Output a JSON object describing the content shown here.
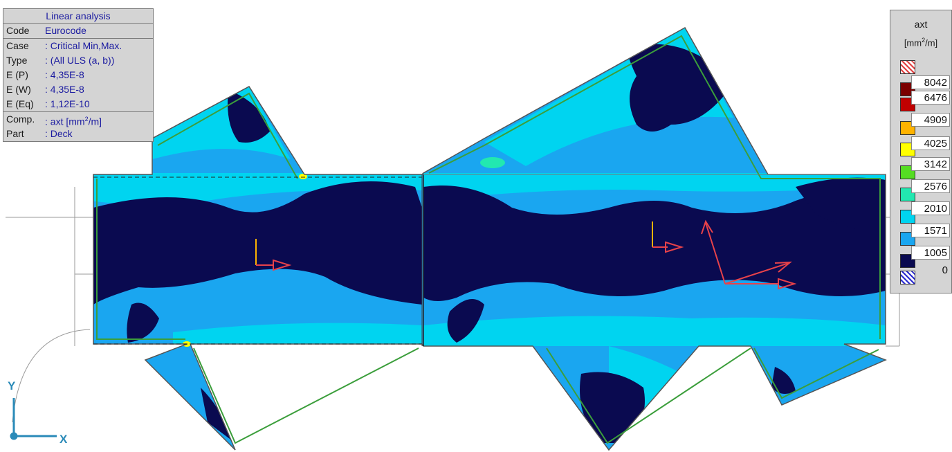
{
  "info_panel": {
    "title": "Linear analysis",
    "code_key": "Code",
    "code_val": "Eurocode",
    "case_key": "Case",
    "case_val": ": Critical Min,Max.",
    "type_key": "Type",
    "type_val": ": (All ULS  (a, b))",
    "ep_key": "E (P)",
    "ep_val": ": 4,35E-8",
    "ew_key": "E (W)",
    "ew_val": ": 4,35E-8",
    "eeq_key": "E (Eq)",
    "eeq_val": ": 1,12E-10",
    "comp_key": "Comp.",
    "comp_val_prefix": ": axt [mm",
    "comp_sup": "2",
    "comp_val_suffix": "/m]",
    "part_key": "Part",
    "part_val": ": Deck"
  },
  "legend": {
    "title": "axt",
    "unit_prefix": "[mm",
    "unit_sup": "2",
    "unit_suffix": "/m]",
    "levels": [
      "8042",
      "6476",
      "4909",
      "4025",
      "3142",
      "2576",
      "2010",
      "1571",
      "1005",
      "0"
    ],
    "colors": {
      "over": "hatch-red",
      "c8042": "#7a0000",
      "c6476": "#c00000",
      "c4909": "#ffb300",
      "c4025": "#ffff00",
      "c3142": "#55dd22",
      "c2576": "#22e8b0",
      "c2010": "#00d4f0",
      "c1571": "#1aa6f0",
      "c1005": "#0a0a50",
      "under": "hatch-blue"
    }
  },
  "axes": {
    "y_label": "Y",
    "x_label": "X"
  },
  "colors": {
    "deck_dark": "#0a0a50",
    "deck_mid": "#1aa6f0",
    "deck_light": "#00d4f0",
    "arrow": "#e8424a",
    "edge": "#3b9e3b"
  }
}
